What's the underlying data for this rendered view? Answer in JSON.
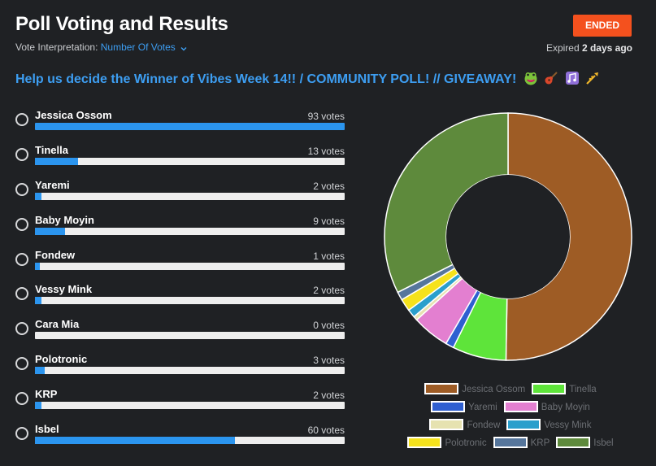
{
  "header": {
    "title": "Poll Voting and Results",
    "interpretation_label": "Vote Interpretation:",
    "interpretation_value": "Number Of Votes",
    "status_badge": "ENDED",
    "expired_prefix": "Expired",
    "expired_value": "2 days ago"
  },
  "question": "Help us decide the Winner of Vibes Week 14!! / COMMUNITY POLL! // GIVEAWAY!",
  "question_emojis": [
    "frog-face-icon",
    "guitar-icon",
    "music-notes-icon",
    "trumpet-icon"
  ],
  "options": [
    {
      "name": "Jessica Ossom",
      "votes_label": "93 votes",
      "votes": 93
    },
    {
      "name": "Tinella",
      "votes_label": "13 votes",
      "votes": 13
    },
    {
      "name": "Yaremi",
      "votes_label": "2 votes",
      "votes": 2
    },
    {
      "name": "Baby Moyin",
      "votes_label": "9 votes",
      "votes": 9
    },
    {
      "name": "Fondew",
      "votes_label": "1 votes",
      "votes": 1
    },
    {
      "name": "Vessy Mink",
      "votes_label": "2 votes",
      "votes": 2
    },
    {
      "name": "Cara Mia",
      "votes_label": "0 votes",
      "votes": 0
    },
    {
      "name": "Polotronic",
      "votes_label": "3 votes",
      "votes": 3
    },
    {
      "name": "KRP",
      "votes_label": "2 votes",
      "votes": 2
    },
    {
      "name": "Isbel",
      "votes_label": "60 votes",
      "votes": 60
    }
  ],
  "colors": {
    "background": "#1f2124",
    "accent_blue": "#2b95ef",
    "badge_orange": "#f4511e",
    "bar_track": "#eeeeee"
  },
  "chart_data": {
    "type": "pie",
    "variant": "donut",
    "categories": [
      "Jessica Ossom",
      "Tinella",
      "Yaremi",
      "Baby Moyin",
      "Fondew",
      "Vessy Mink",
      "Polotronic",
      "KRP",
      "Isbel"
    ],
    "values": [
      93,
      13,
      2,
      9,
      1,
      2,
      3,
      2,
      60
    ],
    "colors": [
      "#9e5c25",
      "#5ee43a",
      "#2f5fd1",
      "#e37fd0",
      "#e6e2b0",
      "#2a9fcc",
      "#f5e21c",
      "#56769c",
      "#5e8a3c"
    ],
    "legend_position": "bottom",
    "legend_rows": [
      [
        "Jessica Ossom",
        "Tinella"
      ],
      [
        "Yaremi",
        "Baby Moyin"
      ],
      [
        "Fondew",
        "Vessy Mink"
      ],
      [
        "Polotronic",
        "KRP",
        "Isbel"
      ]
    ]
  }
}
